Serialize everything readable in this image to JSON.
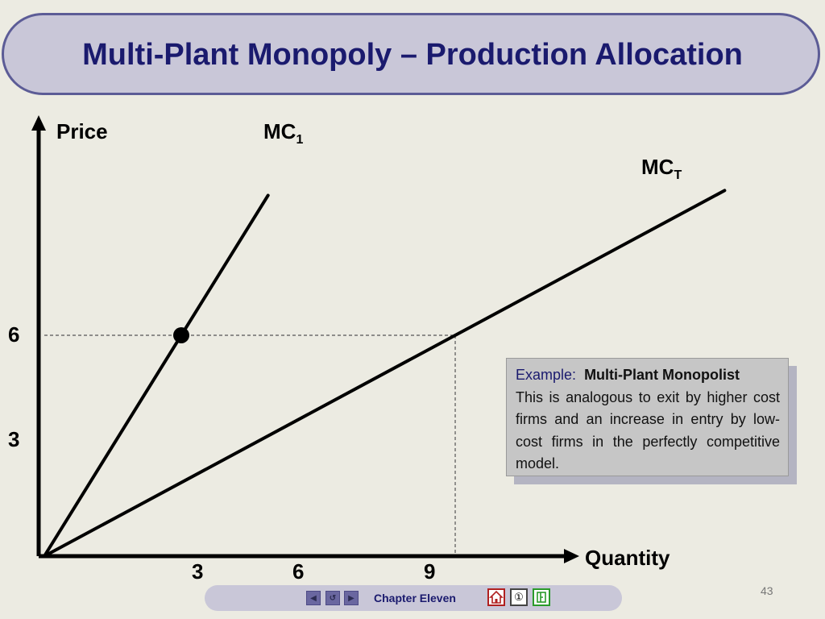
{
  "slide": {
    "title": "Multi-Plant Monopoly – Production Allocation",
    "page_number": "43"
  },
  "chart_data": {
    "type": "line",
    "xlabel": "Quantity",
    "ylabel": "Price",
    "x_ticks": [
      "3",
      "6",
      "9"
    ],
    "y_ticks": [
      "6",
      "3"
    ],
    "series": [
      {
        "name": "MC1",
        "x": [
          0,
          3
        ],
        "y": [
          0,
          6
        ]
      },
      {
        "name": "MCT",
        "x": [
          0,
          9
        ],
        "y": [
          0,
          6
        ]
      }
    ],
    "highlight_point": {
      "series": "MC1",
      "x": 3,
      "y": 6
    },
    "reference_lines": [
      {
        "axis": "horizontal",
        "y": 6,
        "style": "dashed"
      },
      {
        "axis": "vertical",
        "x": 9,
        "style": "dashed"
      }
    ],
    "grid": false
  },
  "labels": {
    "price": "Price",
    "quantity": "Quantity",
    "mc1_main": "MC",
    "mc1_sub": "1",
    "mct_main": "MC",
    "mct_sub": "T"
  },
  "example_box": {
    "prefix": "Example:",
    "heading": "Multi-Plant Monopolist",
    "body": "This is analogous to exit by higher cost firms and an increase in entry by low-cost firms in the perfectly competitive model."
  },
  "nav": {
    "chapter": "Chapter Eleven",
    "buttons": [
      "previous-icon",
      "return-icon",
      "next-icon",
      "home-icon",
      "info-icon",
      "exit-icon"
    ],
    "prev_glyph": "◀",
    "return_glyph": "↺",
    "next_glyph": "▶",
    "info_glyph": "①"
  },
  "colors": {
    "background": "#ecebe2",
    "title_fill": "#c9c7d8",
    "title_border": "#5c5c96",
    "title_text": "#1a1a6e",
    "line": "#000000",
    "example_fill": "#c6c6c6"
  }
}
